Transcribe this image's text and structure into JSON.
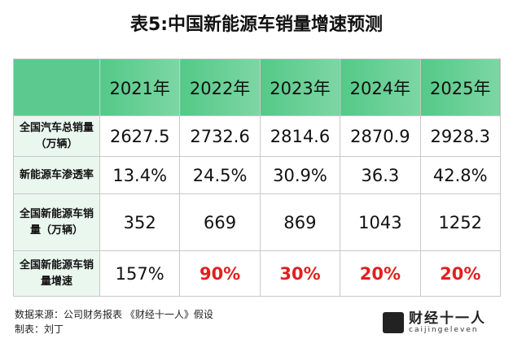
{
  "title": "表5:中国新能源车销量增速预测",
  "table": {
    "columns": [
      "2021年",
      "2022年",
      "2023年",
      "2024年",
      "2025年"
    ],
    "rows": [
      {
        "label": "全国汽车总销量（万辆）",
        "values": [
          "2627.5",
          "2732.6",
          "2814.6",
          "2870.9",
          "2928.3"
        ]
      },
      {
        "label": "新能源车渗透率",
        "values": [
          "13.4%",
          "24.5%",
          "30.9%",
          "36.3",
          "42.8%"
        ]
      },
      {
        "label": "全国新能源车销量（万辆）",
        "values": [
          "352",
          "669",
          "869",
          "1043",
          "1252"
        ]
      },
      {
        "label": "全国新能源车销量增速",
        "values": [
          "157%",
          "90%",
          "30%",
          "20%",
          "20%"
        ]
      }
    ],
    "header_color": "#54c987",
    "label_bg_color": "#eaf7ef",
    "highlight_color": "#e02020"
  },
  "footer": {
    "source": "数据来源：公司财务报表 《财经十一人》假设",
    "author": "制表：刘丁"
  },
  "logo": {
    "name_cn": "财经十一人",
    "name_en": "caijingeleven",
    "mark_text": "财经十一人"
  }
}
